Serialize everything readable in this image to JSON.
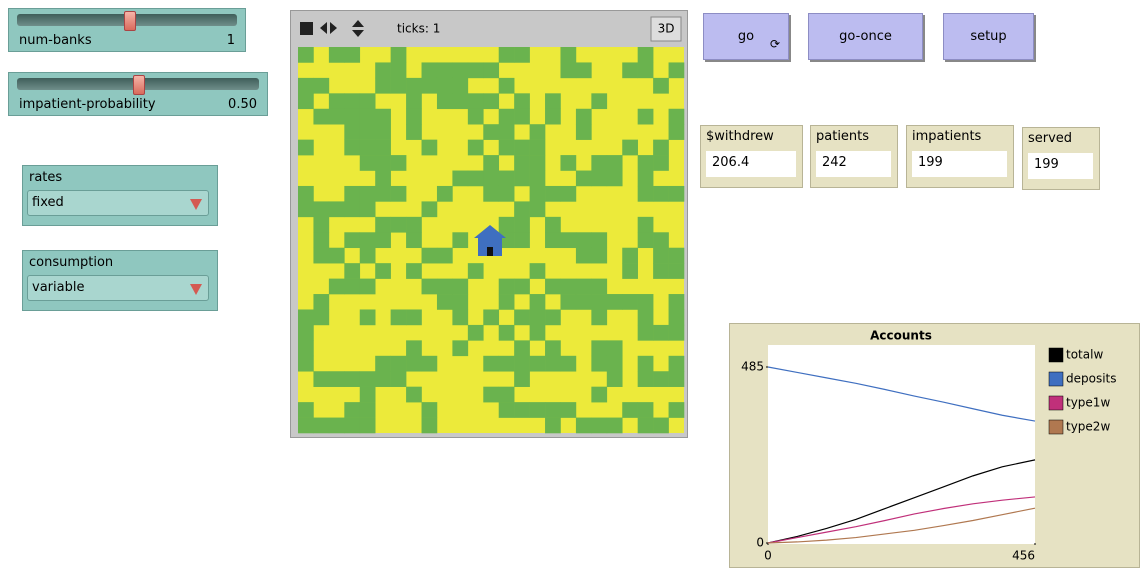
{
  "sliders": [
    {
      "label": "num-banks",
      "value": "1"
    },
    {
      "label": "impatient-probability",
      "value": "0.50"
    }
  ],
  "choosers": [
    {
      "label": "rates",
      "value": "fixed"
    },
    {
      "label": "consumption",
      "value": "variable"
    }
  ],
  "view": {
    "ticks": "ticks: 1",
    "button_3d": "3D"
  },
  "buttons": [
    "go",
    "go-once",
    "setup"
  ],
  "monitors": [
    {
      "label": "$withdrew",
      "value": "206.4"
    },
    {
      "label": "patients",
      "value": "242"
    },
    {
      "label": "impatients",
      "value": "199"
    },
    {
      "label": "served",
      "value": "199"
    }
  ],
  "plot": {
    "type": "line",
    "title": "Accounts",
    "x": [
      0,
      50,
      100,
      150,
      200,
      250,
      300,
      350,
      400,
      456
    ],
    "xlim": [
      0,
      456
    ],
    "ylim": [
      0,
      485
    ],
    "xticks": [
      0,
      456
    ],
    "yticks": [
      0,
      485
    ],
    "series": [
      {
        "name": "totalw",
        "color": "#000000",
        "values": [
          0,
          18,
          40,
          65,
          95,
          125,
          155,
          185,
          210,
          229
        ]
      },
      {
        "name": "deposits",
        "color": "#3f6fc0",
        "values": [
          485,
          470,
          455,
          440,
          423,
          405,
          388,
          370,
          352,
          336
        ]
      },
      {
        "name": "type1w",
        "color": "#c0307a",
        "values": [
          0,
          15,
          30,
          45,
          62,
          80,
          95,
          108,
          118,
          127
        ]
      },
      {
        "name": "type2w",
        "color": "#b07850",
        "values": [
          0,
          3,
          8,
          15,
          25,
          35,
          48,
          62,
          78,
          96
        ]
      }
    ]
  }
}
